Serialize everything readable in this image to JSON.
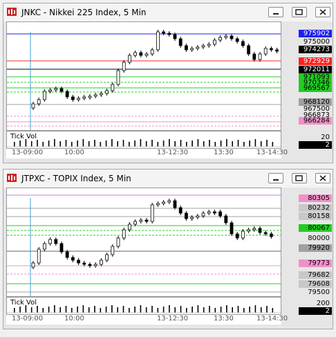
{
  "windows": [
    {
      "title": "JNKC - Nikkei 225 Index, 5 Min",
      "sub_label": "Tick Vol",
      "sub_ticks": [
        "20",
        "2"
      ],
      "time_labels": [
        "13-09:00",
        "10:00",
        "13-12:30",
        "13:30",
        "13-14:30"
      ],
      "price_labels": [
        {
          "text": "975902",
          "bg": "#1e1ef0",
          "fg": "#ffffff"
        },
        {
          "text": "975000",
          "bg": "",
          "fg": "#000000"
        },
        {
          "text": "974273",
          "bg": "#000000",
          "fg": "#ffffff"
        },
        {
          "text": "972929",
          "bg": "#ff2020",
          "fg": "#ffffff"
        },
        {
          "text": "972011",
          "bg": "#000000",
          "fg": "#ffffff"
        },
        {
          "text": "971093",
          "bg": "#22cc22",
          "fg": "#000000"
        },
        {
          "text": "970346",
          "bg": "#22cc22",
          "fg": "#000000"
        },
        {
          "text": "969567",
          "bg": "#22cc22",
          "fg": "#000000"
        },
        {
          "text": "968120",
          "bg": "#a0a0a0",
          "fg": "#000000"
        },
        {
          "text": "967500",
          "bg": "",
          "fg": "#000000"
        },
        {
          "text": "966873",
          "bg": "",
          "fg": "#000000"
        },
        {
          "text": "966284",
          "bg": "#f090c8",
          "fg": "#000000"
        }
      ]
    },
    {
      "title": "JTPXC - TOPIX Index, 5 Min",
      "sub_label": "Tick Vol",
      "sub_ticks": [
        "200",
        "2"
      ],
      "time_labels": [
        "13-09:00",
        "10:00",
        "13-12:30",
        "13:30",
        "13-14:30"
      ],
      "price_labels": [
        {
          "text": "80305",
          "bg": "#f090c8",
          "fg": "#000000"
        },
        {
          "text": "80232",
          "bg": "#c8c8c8",
          "fg": "#000000"
        },
        {
          "text": "80158",
          "bg": "#c8c8c8",
          "fg": "#000000"
        },
        {
          "text": "80067",
          "bg": "#22cc22",
          "fg": "#000000"
        },
        {
          "text": "80000",
          "bg": "",
          "fg": "#000000"
        },
        {
          "text": "79920",
          "bg": "#a0a0a0",
          "fg": "#000000"
        },
        {
          "text": "79773",
          "bg": "#f090c8",
          "fg": "#000000"
        },
        {
          "text": "79682",
          "bg": "#c8c8c8",
          "fg": "#000000"
        },
        {
          "text": "79608",
          "bg": "#c8c8c8",
          "fg": "#000000"
        },
        {
          "text": "79500",
          "bg": "",
          "fg": "#000000"
        }
      ]
    }
  ],
  "icons": {
    "app": "chart-app-icon",
    "minimize": "minimize-icon",
    "restore": "restore-icon",
    "close": "close-icon"
  }
}
